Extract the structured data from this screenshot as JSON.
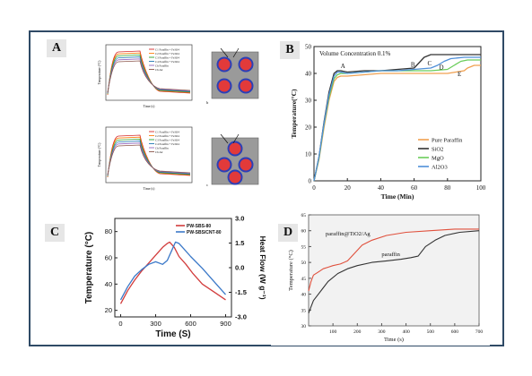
{
  "panels": {
    "a": {
      "label": "A",
      "top_plot": {
        "ylabel": "Temperature (°C)",
        "xlabel": "Time (s)",
        "legend": [
          "C1 Paraffin + Fe3O4",
          "C2 Paraffin + Fe3O4",
          "C3 Paraffin + Fe3O4",
          "C4 Paraffin + Fe3O4",
          "Ch Paraffin",
          "Ch Air"
        ],
        "tag": "b"
      },
      "bottom_plot": {
        "ylabel": "Temperature (°C)",
        "xlabel": "Time (s)",
        "legend": [
          "C1 Paraffin + Fe3O4",
          "C2 Paraffin + Fe3O4",
          "C3 Paraffin + Fe3O4",
          "C4 Paraffin + Fe3O4",
          "Ch Paraffin",
          "Ch Air"
        ],
        "tag": "c"
      },
      "series_colors": [
        "#d62728",
        "#ff7f0e",
        "#2ca02c",
        "#1f77b4",
        "#9467bd",
        "#8c564b"
      ]
    },
    "b": {
      "label": "B",
      "title": "Volume Concentration 0.1%",
      "xlabel": "Time (Min)",
      "ylabel": "Temperature(°C)",
      "point_labels": [
        "A",
        "B",
        "C",
        "D",
        "E"
      ]
    },
    "c": {
      "label": "C",
      "xlabel": "Time (S)",
      "ylabel": "Temperature (°C)",
      "ylabel_right": "Heat Flow (W g⁻¹)"
    },
    "d": {
      "label": "D",
      "xlabel": "Time (s)",
      "ylabel": "Temperature (°C)",
      "labels": [
        "paraffin@TiO2/Ag",
        "paraffin"
      ]
    }
  },
  "chart_data": [
    {
      "type": "line",
      "title": "Volume Concentration 0.1%",
      "xlabel": "Time (Min)",
      "ylabel": "Temperature(°C)",
      "xlim": [
        0,
        100
      ],
      "ylim": [
        0,
        50
      ],
      "xticks": [
        0,
        20,
        40,
        60,
        80,
        100
      ],
      "yticks": [
        0,
        10,
        20,
        30,
        40,
        50
      ],
      "legend_position": "bottom-right",
      "series": [
        {
          "name": "Pure Paraffin",
          "color": "#f0a050",
          "x": [
            0,
            3,
            6,
            9,
            12,
            14,
            16,
            20,
            30,
            40,
            50,
            60,
            70,
            80,
            85,
            90,
            92,
            96,
            100
          ],
          "y": [
            0,
            8,
            20,
            30,
            37,
            38.5,
            39,
            39,
            39.5,
            40,
            40,
            40,
            40,
            40,
            40.5,
            41,
            42,
            43,
            43
          ]
        },
        {
          "name": "SiO2",
          "color": "#333333",
          "x": [
            0,
            3,
            6,
            9,
            12,
            14,
            16,
            20,
            30,
            40,
            50,
            60,
            63,
            66,
            70,
            80,
            90,
            100
          ],
          "y": [
            0,
            9,
            22,
            33,
            40,
            41,
            41,
            40.5,
            41,
            41,
            41.5,
            42,
            44,
            46,
            47,
            47,
            47,
            47
          ]
        },
        {
          "name": "MgO",
          "color": "#6acd5a",
          "x": [
            0,
            3,
            6,
            9,
            12,
            14,
            16,
            20,
            30,
            40,
            50,
            60,
            70,
            80,
            84,
            88,
            92,
            100
          ],
          "y": [
            0,
            8.5,
            21,
            31,
            38,
            39.5,
            40,
            40,
            40.5,
            41,
            41,
            41,
            41,
            41.5,
            43,
            44.5,
            45,
            45
          ]
        },
        {
          "name": "Al2O3",
          "color": "#4f8fd8",
          "x": [
            0,
            3,
            6,
            9,
            12,
            14,
            16,
            20,
            30,
            40,
            50,
            60,
            70,
            74,
            78,
            82,
            90,
            100
          ],
          "y": [
            0,
            9,
            21.5,
            32,
            39,
            40.5,
            40.5,
            40,
            40.5,
            41,
            41,
            41.5,
            42,
            43,
            44.5,
            45.5,
            46,
            46
          ]
        }
      ],
      "annotations": [
        {
          "text": "A",
          "x": 16,
          "y": 42
        },
        {
          "text": "B",
          "x": 58,
          "y": 42.5
        },
        {
          "text": "C",
          "x": 68,
          "y": 43
        },
        {
          "text": "D",
          "x": 75,
          "y": 41.5
        },
        {
          "text": "E",
          "x": 86,
          "y": 39
        }
      ]
    },
    {
      "type": "line",
      "xlabel": "Time (S)",
      "ylabel": "Temperature (°C)",
      "ylabel_right": "Heat Flow (W g⁻¹)",
      "xlim": [
        -50,
        950
      ],
      "ylim": [
        15,
        90
      ],
      "ylim_right": [
        -3.0,
        3.0
      ],
      "xticks": [
        0,
        300,
        600,
        900
      ],
      "yticks": [
        20,
        40,
        60,
        80
      ],
      "yticks_right": [
        -3.0,
        -1.5,
        0.0,
        1.5,
        3.0
      ],
      "legend_position": "top-right",
      "series": [
        {
          "name": "PW-SBS-80",
          "color": "#d23c3c",
          "x": [
            0,
            60,
            120,
            180,
            240,
            300,
            360,
            400,
            420,
            460,
            500,
            560,
            620,
            700,
            800,
            900
          ],
          "y": [
            25,
            35,
            43,
            50,
            56,
            62,
            68,
            71,
            72,
            68,
            61,
            55,
            48,
            40,
            34,
            28
          ]
        },
        {
          "name": "PW-SBS/CNT-80",
          "color": "#3a78c8",
          "x": [
            0,
            60,
            120,
            180,
            240,
            300,
            360,
            400,
            440,
            470,
            500,
            540,
            600,
            700,
            800,
            900
          ],
          "y": [
            28,
            38,
            46,
            51,
            55,
            57,
            55,
            58,
            66,
            72,
            71,
            67,
            61,
            52,
            42,
            32
          ]
        }
      ]
    },
    {
      "type": "line",
      "xlabel": "Time (s)",
      "ylabel": "Temperature (°C)",
      "xlim": [
        0,
        700
      ],
      "ylim": [
        30,
        65
      ],
      "xticks": [
        100,
        200,
        300,
        400,
        500,
        600,
        700
      ],
      "yticks": [
        30,
        35,
        40,
        45,
        50,
        55,
        60,
        65
      ],
      "series": [
        {
          "name": "paraffin@TiO2/Ag",
          "color": "#e0503c",
          "x": [
            0,
            10,
            20,
            40,
            60,
            80,
            100,
            130,
            160,
            190,
            220,
            260,
            320,
            400,
            500,
            600,
            700
          ],
          "y": [
            41,
            44,
            46,
            47,
            48,
            48.5,
            49,
            49.5,
            50.5,
            53,
            55.5,
            57,
            58.5,
            59.5,
            60,
            60.5,
            60.5
          ]
        },
        {
          "name": "paraffin",
          "color": "#333333",
          "x": [
            0,
            10,
            20,
            40,
            60,
            80,
            120,
            160,
            200,
            260,
            320,
            380,
            420,
            450,
            480,
            520,
            560,
            620,
            700
          ],
          "y": [
            34,
            36,
            38,
            40,
            42,
            44,
            46.5,
            48,
            49,
            50,
            50.5,
            51,
            51.5,
            52,
            55,
            57,
            58.5,
            59.5,
            60
          ]
        }
      ],
      "annotations": [
        {
          "text": "paraffin@TiO2/Ag",
          "x": 70,
          "y": 58.5
        },
        {
          "text": "paraffin",
          "x": 300,
          "y": 52
        }
      ]
    }
  ]
}
